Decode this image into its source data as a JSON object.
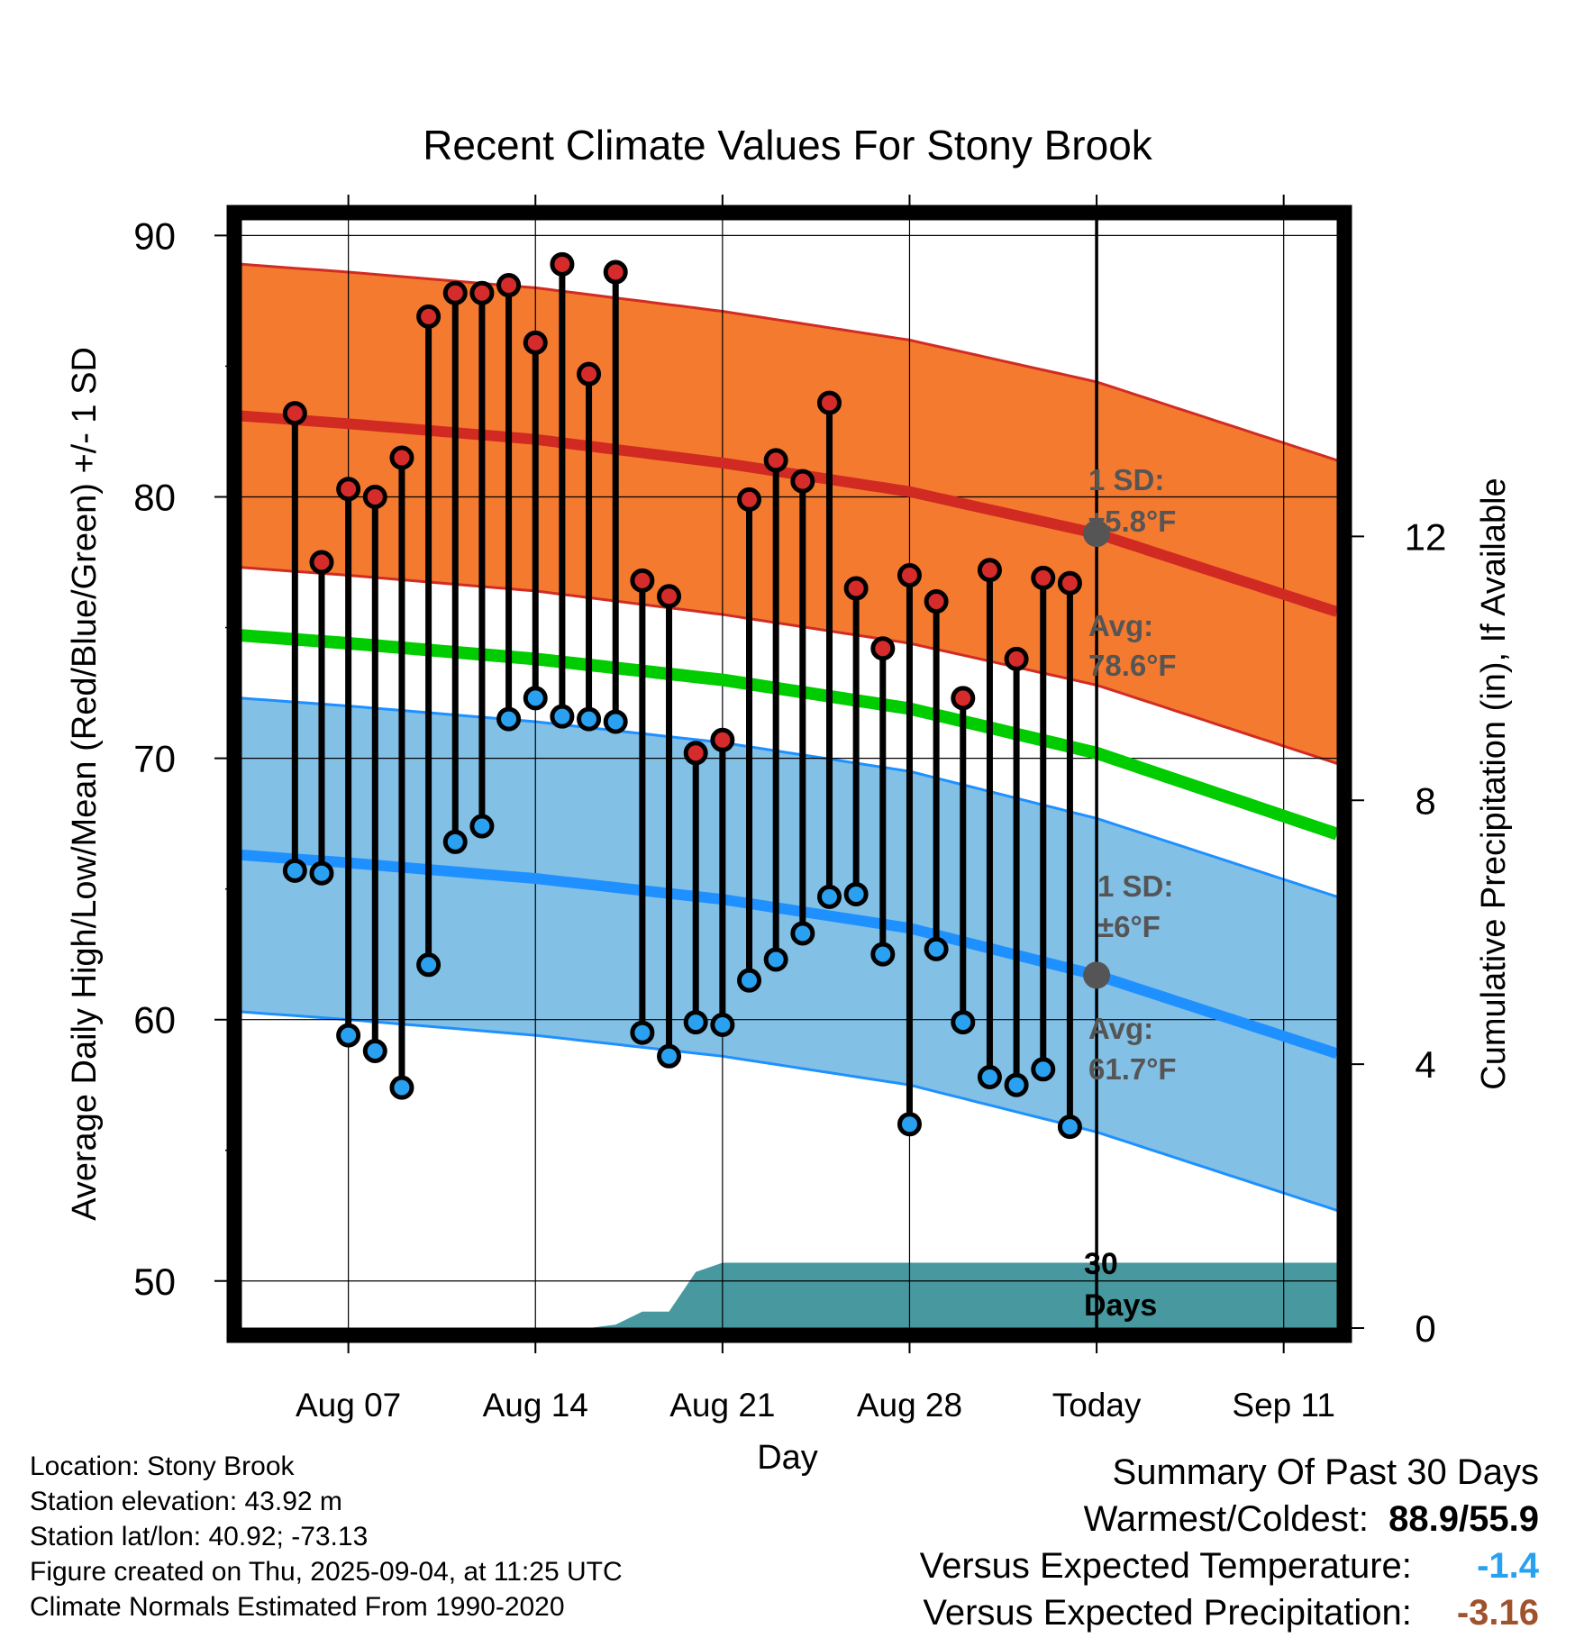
{
  "title": "Recent Climate Values For Stony Brook",
  "xlabel": "Day",
  "ylabel_left": "Average Daily High/Low/Mean (Red/Blue/Green) +/- 1 SD",
  "ylabel_right": "Cumulative Precipitation (in), If Available",
  "annotations": {
    "high_sd_line1": "1 SD:",
    "high_sd_line2": "±5.8°F",
    "high_avg_line1": "Avg:",
    "high_avg_line2": "78.6°F",
    "low_sd_line1": "1 SD:",
    "low_sd_line2": "±6°F",
    "low_avg_line1": "Avg:",
    "low_avg_line2": "61.7°F",
    "window_line1": "30",
    "window_line2": "Days"
  },
  "meta": {
    "location": "Location: Stony Brook",
    "elevation": "Station elevation: 43.92 m",
    "latlon": "Station lat/lon: 40.92; -73.13",
    "created": "Figure created on Thu, 2025-09-04, at 11:25 UTC",
    "normals": "Climate Normals Estimated From 1990-2020"
  },
  "summary": {
    "title": "Summary Of Past 30 Days",
    "warm_cold_label": "Warmest/Coldest:",
    "warm_cold_value": "88.9/55.9",
    "temp_label": "Versus Expected Temperature:",
    "temp_value": "-1.4",
    "precip_label": "Versus Expected Precipitation:",
    "precip_value": "-3.16"
  },
  "colors": {
    "high_band": "#f47a30",
    "high_line": "#d02a22",
    "high_edge": "#d12c24",
    "low_band": "#82c0e6",
    "low_line": "#1e90ff",
    "low_edge": "#1e90ff",
    "mean_line": "#00cc00",
    "precip_fill": "#47999f",
    "high_marker": "#d52b2b",
    "low_marker": "#2aa0f0",
    "annotation": "#555555",
    "temp_value": "#2aa0f0",
    "precip_value": "#a0522d"
  },
  "chart_data": {
    "type": "line",
    "x_unit": "date",
    "xlim": [
      "2025-08-03",
      "2025-09-13"
    ],
    "x_ticks": [
      {
        "date": "2025-08-07",
        "label": "Aug 07"
      },
      {
        "date": "2025-08-14",
        "label": "Aug 14"
      },
      {
        "date": "2025-08-21",
        "label": "Aug 21"
      },
      {
        "date": "2025-08-28",
        "label": "Aug 28"
      },
      {
        "date": "2025-09-04",
        "label": "Today"
      },
      {
        "date": "2025-09-11",
        "label": "Sep 11"
      }
    ],
    "today": "2025-09-04",
    "ylim_left": [
      48.2,
      90.6
    ],
    "y_ticks_left": [
      50,
      60,
      70,
      80,
      90
    ],
    "ylim_right": [
      0,
      16.8
    ],
    "y_ticks_right": [
      0,
      4,
      8,
      12
    ],
    "grid": true,
    "daily": {
      "dates": [
        "2025-08-05",
        "2025-08-06",
        "2025-08-07",
        "2025-08-08",
        "2025-08-09",
        "2025-08-10",
        "2025-08-11",
        "2025-08-12",
        "2025-08-13",
        "2025-08-14",
        "2025-08-15",
        "2025-08-16",
        "2025-08-17",
        "2025-08-18",
        "2025-08-19",
        "2025-08-20",
        "2025-08-21",
        "2025-08-22",
        "2025-08-23",
        "2025-08-24",
        "2025-08-25",
        "2025-08-26",
        "2025-08-27",
        "2025-08-28",
        "2025-08-29",
        "2025-08-30",
        "2025-08-31",
        "2025-09-01",
        "2025-09-02",
        "2025-09-03"
      ],
      "high": [
        83.2,
        77.5,
        80.3,
        80.0,
        81.5,
        86.9,
        87.8,
        87.8,
        88.1,
        85.9,
        88.9,
        84.7,
        88.6,
        76.8,
        76.2,
        70.2,
        70.7,
        79.9,
        81.4,
        80.6,
        83.6,
        76.5,
        74.2,
        77.0,
        76.0,
        72.3,
        77.2,
        73.8,
        76.9,
        76.7
      ],
      "low": [
        65.7,
        65.6,
        59.4,
        58.8,
        57.4,
        62.1,
        66.8,
        67.4,
        71.5,
        72.3,
        71.6,
        71.5,
        71.4,
        59.5,
        58.6,
        59.9,
        59.8,
        61.5,
        62.3,
        63.3,
        64.7,
        64.8,
        62.5,
        56.0,
        62.7,
        59.9,
        57.8,
        57.5,
        58.1,
        55.9
      ]
    },
    "normals": {
      "dates": [
        "2025-08-03",
        "2025-08-07",
        "2025-08-14",
        "2025-08-21",
        "2025-08-28",
        "2025-09-04",
        "2025-09-13"
      ],
      "high_avg": [
        83.1,
        82.8,
        82.2,
        81.3,
        80.2,
        78.6,
        75.6
      ],
      "high_sd": 5.8,
      "low_avg": [
        66.3,
        66.0,
        65.4,
        64.6,
        63.5,
        61.7,
        58.7
      ],
      "low_sd": 6.0,
      "mean_avg": [
        74.7,
        74.4,
        73.8,
        73.0,
        71.9,
        70.2,
        67.1
      ]
    },
    "precip_cumulative": {
      "dates": [
        "2025-08-03",
        "2025-08-16",
        "2025-08-17",
        "2025-08-18",
        "2025-08-19",
        "2025-08-20",
        "2025-08-21",
        "2025-09-13"
      ],
      "values": [
        0.0,
        0.0,
        0.05,
        0.25,
        0.25,
        0.85,
        0.99,
        0.99
      ]
    }
  }
}
